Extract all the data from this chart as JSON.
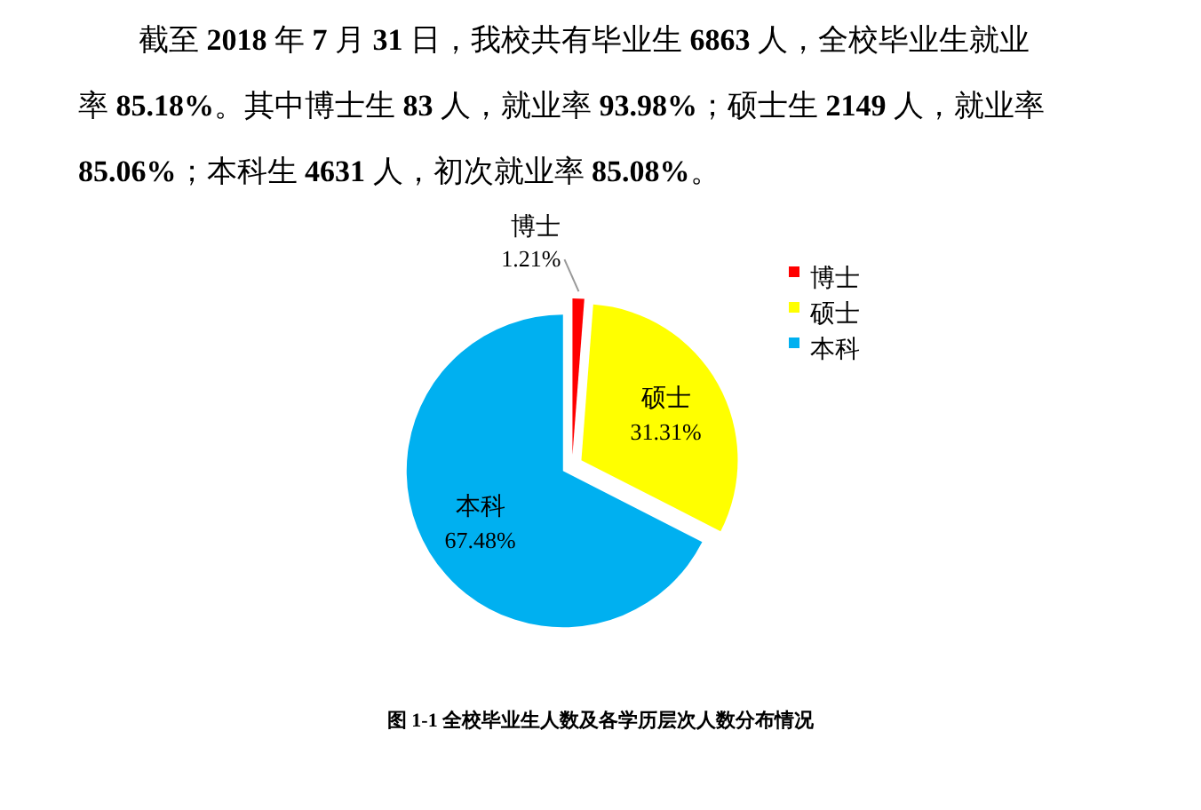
{
  "chart_data": {
    "type": "pie",
    "title": "图 1-1 全校毕业生人数及各学历层次人数分布情况",
    "annotations": [
      "截至 2018 年 7 月 31 日，我校共有毕业生 6863 人，全校毕业生就业率 85.18%。其中博士生 83 人，就业率 93.98%；硕士生 2149 人，就业率 85.06%；本科生 4631 人，初次就业率 85.08%。"
    ],
    "categories": [
      "博士",
      "硕士",
      "本科"
    ],
    "values": [
      1.21,
      31.31,
      67.48
    ],
    "colors": [
      "#ff0000",
      "#ffff00",
      "#00b0f0"
    ],
    "value_labels": [
      "1.21%",
      "31.31%",
      "67.48%"
    ],
    "legend": "top right"
  }
}
